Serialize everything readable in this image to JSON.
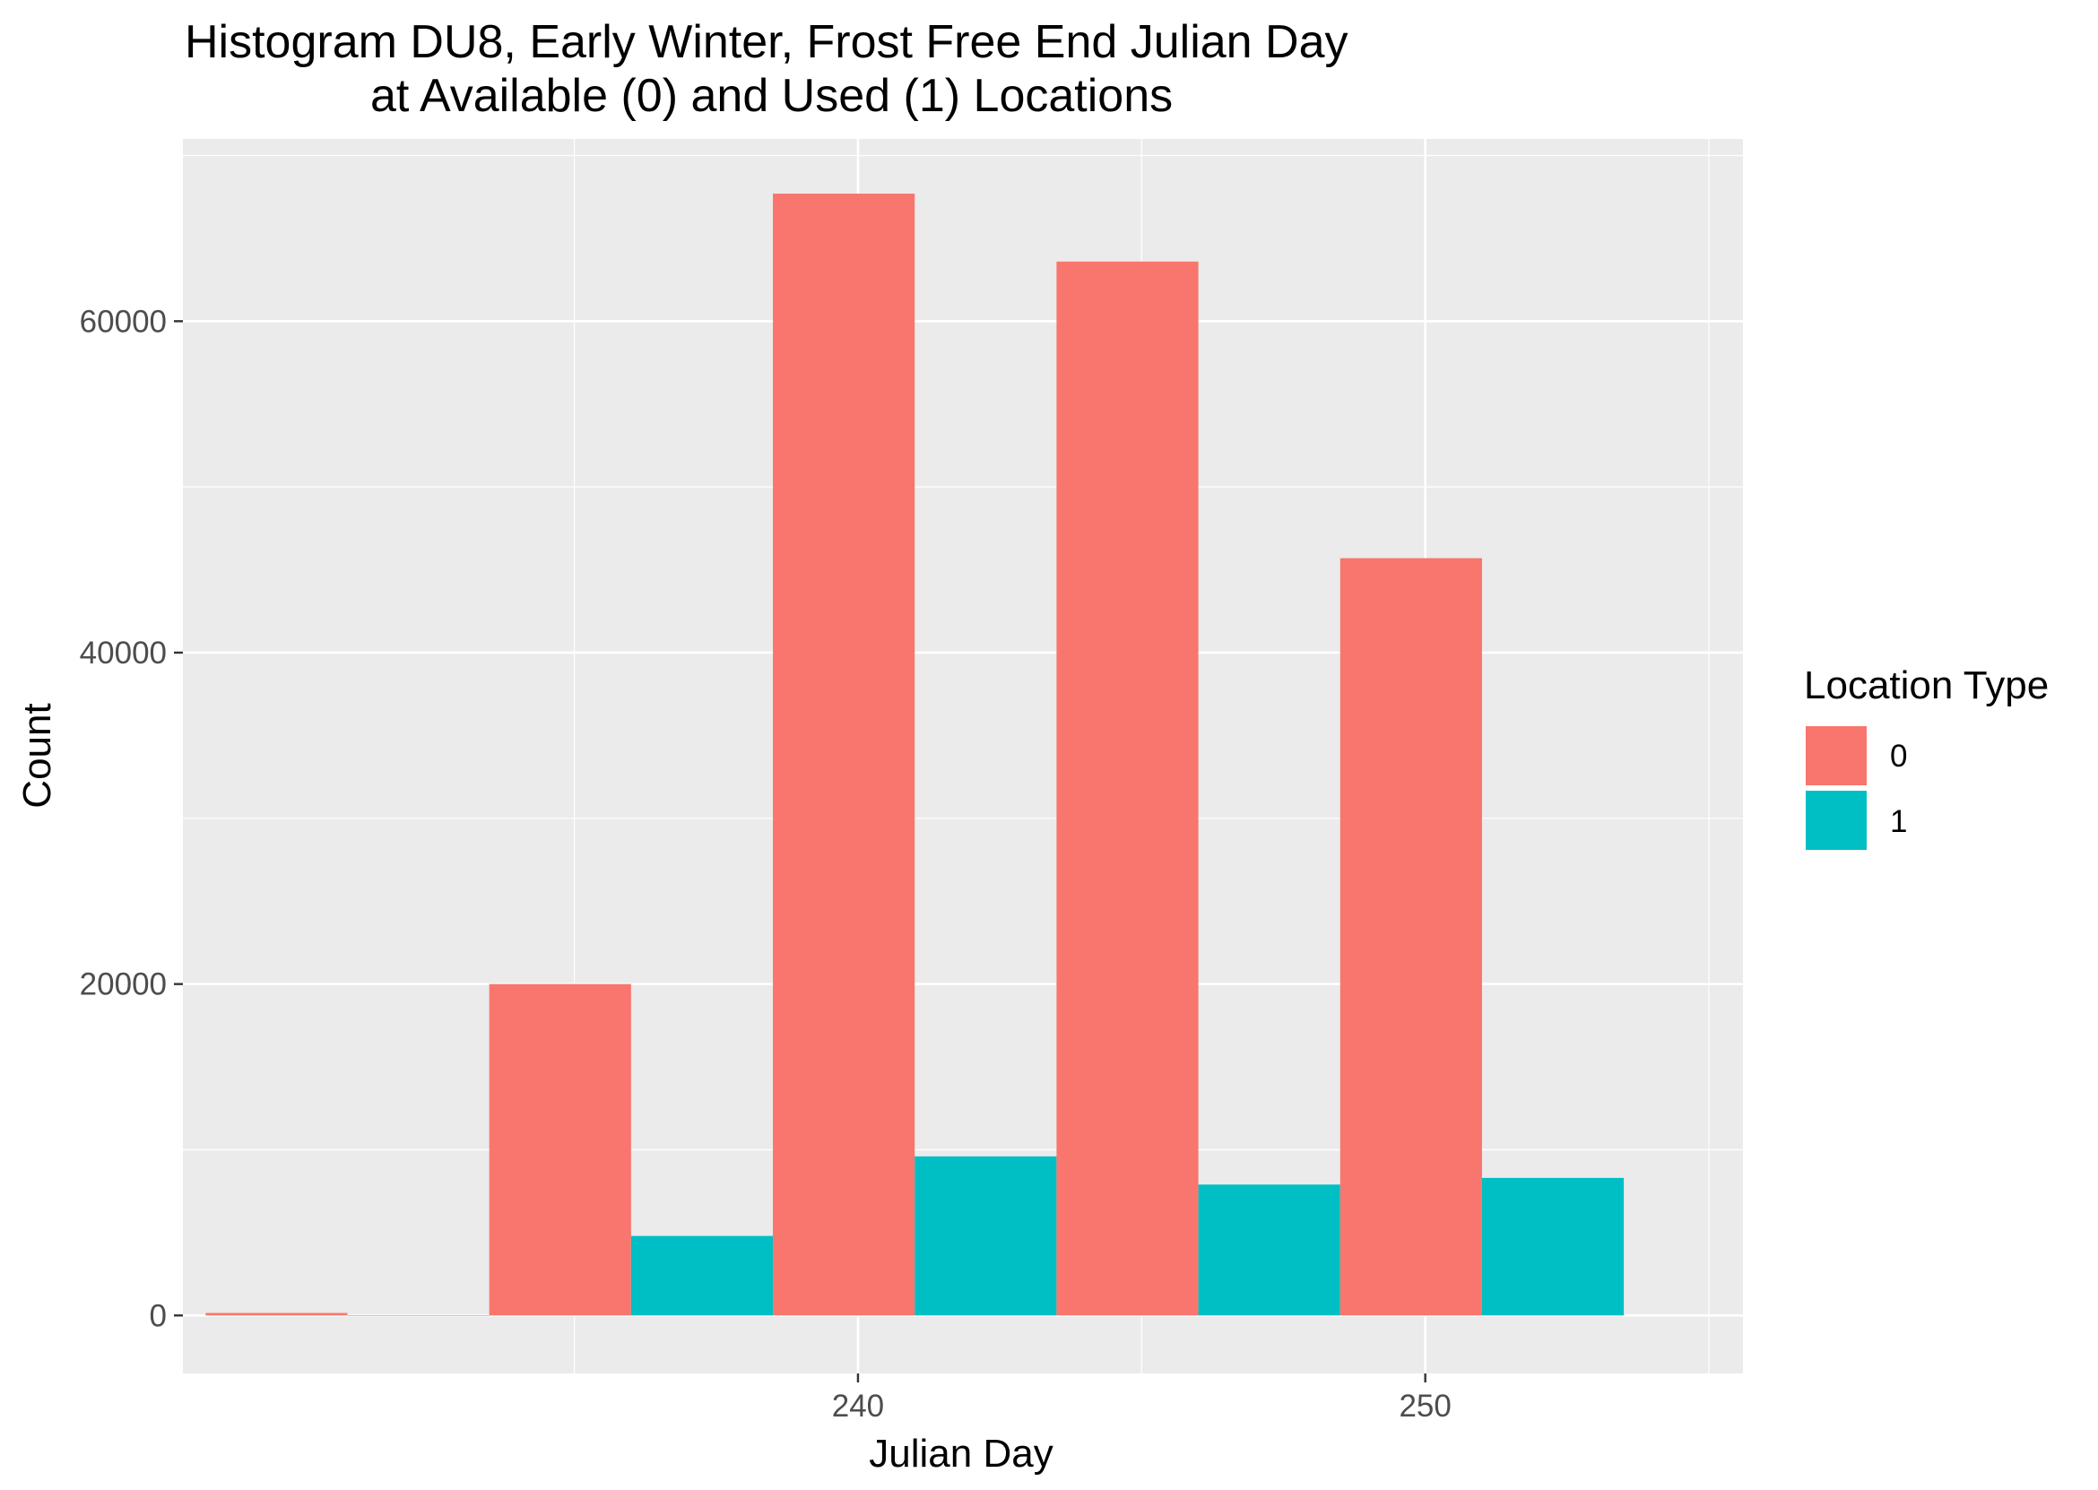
{
  "chart_data": {
    "type": "bar",
    "title_lines": [
      "Histogram DU8, Early Winter, Frost Free End Julian Day",
      "at Available (0) and Used (1) Locations"
    ],
    "xlabel": "Julian Day",
    "ylabel": "Count",
    "x_ticks": [
      240,
      250
    ],
    "y_ticks": [
      0,
      20000,
      40000,
      60000
    ],
    "xlim": [
      228.1,
      255.6
    ],
    "ylim": [
      -3500,
      71000
    ],
    "bin_width": 5,
    "grid": true,
    "position": "dodge",
    "legend": {
      "title": "Location Type",
      "placement": "right",
      "entries": [
        {
          "label": "0",
          "color": "#F8766D"
        },
        {
          "label": "1",
          "color": "#00BFC4"
        }
      ]
    },
    "bins": [
      {
        "start": 228.5,
        "end": 233.5
      },
      {
        "start": 233.5,
        "end": 238.5
      },
      {
        "start": 238.5,
        "end": 243.5
      },
      {
        "start": 243.5,
        "end": 248.5
      },
      {
        "start": 248.5,
        "end": 253.5
      }
    ],
    "series": [
      {
        "name": "0",
        "color": "#F8766D",
        "values": [
          150,
          20000,
          67700,
          63600,
          45700
        ]
      },
      {
        "name": "1",
        "color": "#00BFC4",
        "values": [
          0,
          4800,
          9600,
          7900,
          8300
        ]
      }
    ],
    "colors": {
      "panel_background": "#EBEBEB",
      "grid_line": "#FFFFFF"
    }
  }
}
